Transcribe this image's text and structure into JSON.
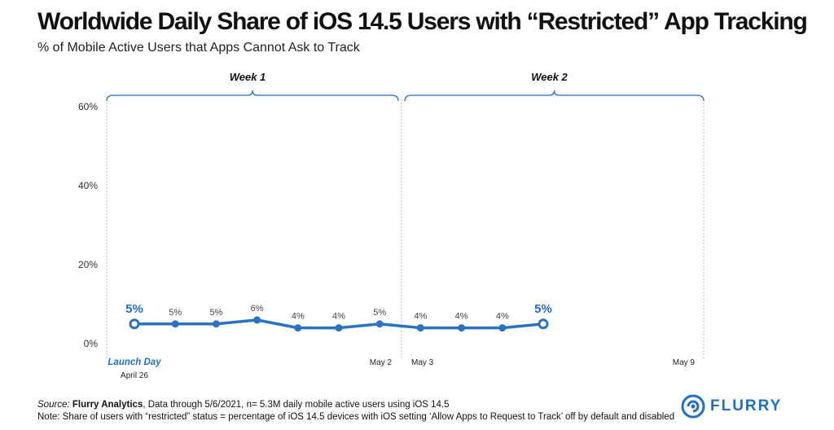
{
  "title": "Worldwide Daily Share of iOS 14.5 Users with “Restricted” App Tracking",
  "subtitle": "% of Mobile Active Users that Apps Cannot Ask to Track",
  "footer": {
    "source_label": "Source:",
    "source_name": "Flurry Analytics",
    "source_rest": ", Data through 5/6/2021, n= 5.3M daily mobile active users using iOS 14.5",
    "note": "Note: Share of users with “restricted” status = percentage of iOS 14.5 devices with iOS setting ‘Allow Apps to Request to Track’ off by default and disabled"
  },
  "logo": {
    "text": "FLURRY",
    "icon": "flurry-logo-icon"
  },
  "colors": {
    "line": "#2a72c4",
    "highlight": "#1f6fc2",
    "grid": "#cccccc",
    "text": "#444444"
  },
  "chart_data": {
    "type": "line",
    "x": [
      "Apr 26",
      "Apr 27",
      "Apr 28",
      "Apr 29",
      "Apr 30",
      "May 1",
      "May 2",
      "May 3",
      "May 4",
      "May 5",
      "May 6"
    ],
    "values": [
      5,
      5,
      5,
      6,
      4,
      4,
      5,
      4,
      4,
      4,
      5
    ],
    "data_labels": [
      "5%",
      "5%",
      "5%",
      "6%",
      "4%",
      "4%",
      "5%",
      "4%",
      "4%",
      "4%",
      "5%"
    ],
    "highlight_indices": [
      0,
      10
    ],
    "ylim": [
      0,
      60
    ],
    "yticks": [
      0,
      20,
      40,
      60
    ],
    "ytick_labels": [
      "0%",
      "20%",
      "40%",
      "60%"
    ],
    "xtick_labels": [
      {
        "index": 0,
        "text": "Launch Day",
        "subtext": "April 26",
        "emphasis": true
      },
      {
        "index": 6,
        "text": "May 2"
      },
      {
        "index": 7,
        "text": "May 3"
      },
      {
        "index": 13,
        "text": "May 9"
      }
    ],
    "weeks": [
      {
        "label": "Week 1",
        "start_index": 0,
        "end_index": 6
      },
      {
        "label": "Week 2",
        "start_index": 7,
        "end_index": 13
      }
    ],
    "grid": false,
    "legend": "none"
  }
}
